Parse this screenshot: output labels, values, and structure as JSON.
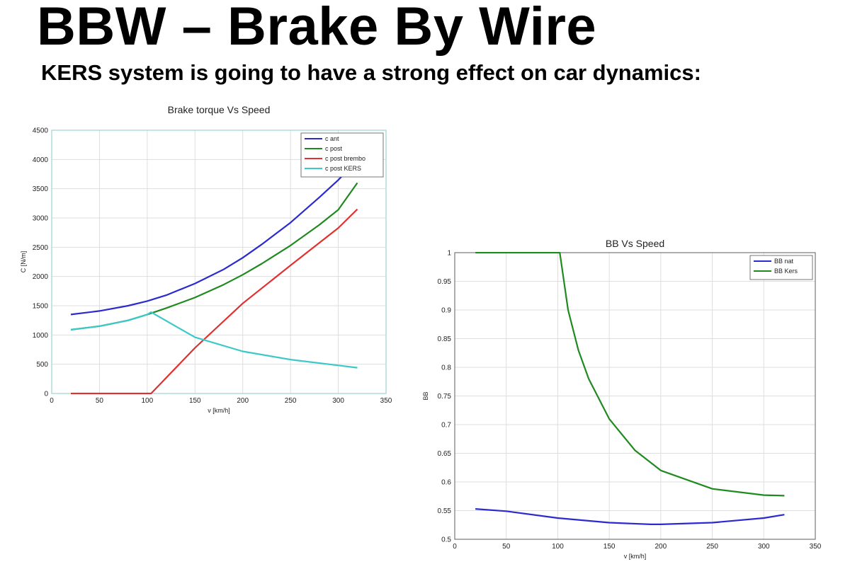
{
  "slide": {
    "title": "BBW – Brake By Wire",
    "subtitle": "KERS system is going to have a strong effect on car dynamics:"
  },
  "chart_data": [
    {
      "type": "line",
      "title": "Brake torque Vs Speed",
      "xlabel": "v [km/h]",
      "ylabel": "C [N/m]",
      "xlim": [
        0,
        350
      ],
      "ylim": [
        0,
        4500
      ],
      "xticks": [
        0,
        50,
        100,
        150,
        200,
        250,
        300,
        350
      ],
      "yticks": [
        0,
        500,
        1000,
        1500,
        2000,
        2500,
        3000,
        3500,
        4000,
        4500
      ],
      "grid": true,
      "legend_position": "top-right",
      "series": [
        {
          "name": "c ant",
          "color": "#2a2ad0",
          "x": [
            20,
            50,
            80,
            100,
            120,
            150,
            180,
            200,
            220,
            250,
            280,
            300,
            320
          ],
          "y": [
            1350,
            1410,
            1500,
            1580,
            1680,
            1880,
            2120,
            2320,
            2550,
            2920,
            3350,
            3650,
            3990
          ]
        },
        {
          "name": "c post",
          "color": "#1f8a1f",
          "x": [
            20,
            50,
            80,
            100,
            120,
            150,
            180,
            200,
            220,
            250,
            280,
            300,
            320
          ],
          "y": [
            1090,
            1150,
            1250,
            1350,
            1460,
            1640,
            1860,
            2030,
            2220,
            2530,
            2880,
            3140,
            3600
          ]
        },
        {
          "name": "c post brembo",
          "color": "#e03030",
          "x": [
            20,
            100,
            104,
            150,
            200,
            250,
            300,
            320
          ],
          "y": [
            0,
            0,
            0,
            780,
            1540,
            2190,
            2830,
            3150
          ]
        },
        {
          "name": "c post KERS",
          "color": "#3cc8c8",
          "x": [
            20,
            50,
            80,
            100,
            104,
            150,
            200,
            250,
            300,
            320
          ],
          "y": [
            1090,
            1150,
            1250,
            1350,
            1390,
            960,
            720,
            580,
            480,
            440
          ]
        }
      ]
    },
    {
      "type": "line",
      "title": "BB Vs Speed",
      "xlabel": "v [km/h]",
      "ylabel": "BB",
      "xlim": [
        0,
        350
      ],
      "ylim": [
        0.5,
        1
      ],
      "xticks": [
        0,
        50,
        100,
        150,
        200,
        250,
        300,
        350
      ],
      "yticks": [
        0.5,
        0.55,
        0.6,
        0.65,
        0.7,
        0.75,
        0.8,
        0.85,
        0.9,
        0.95,
        1
      ],
      "grid": true,
      "legend_position": "top-right",
      "series": [
        {
          "name": "BB nat",
          "color": "#2a2ad0",
          "x": [
            20,
            50,
            100,
            150,
            190,
            200,
            250,
            300,
            320
          ],
          "y": [
            0.553,
            0.549,
            0.537,
            0.529,
            0.526,
            0.526,
            0.529,
            0.537,
            0.543
          ]
        },
        {
          "name": "BB Kers",
          "color": "#1f8a1f",
          "x": [
            20,
            50,
            80,
            100,
            102,
            110,
            120,
            130,
            150,
            175,
            200,
            250,
            300,
            320
          ],
          "y": [
            1,
            1,
            1,
            1,
            1,
            0.9,
            0.83,
            0.78,
            0.71,
            0.655,
            0.62,
            0.588,
            0.577,
            0.576
          ]
        }
      ]
    }
  ]
}
